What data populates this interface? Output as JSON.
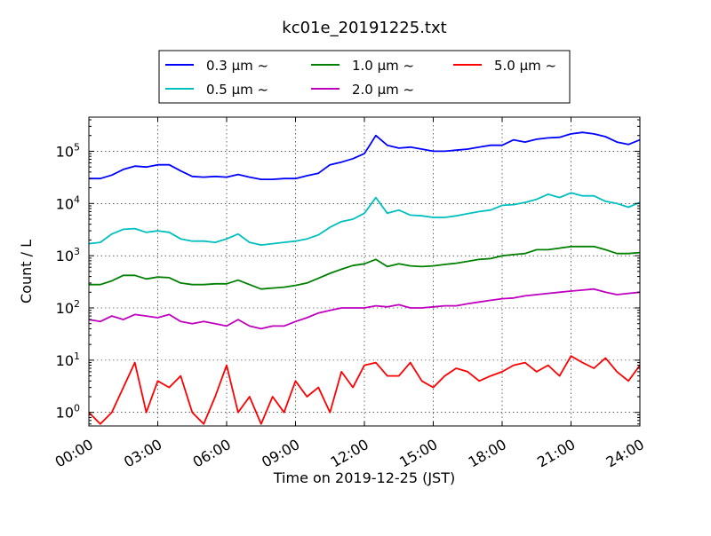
{
  "chart_data": {
    "type": "line",
    "title": "kc01e_20191225.txt",
    "xlabel": "Time on 2019-12-25 (JST)",
    "ylabel": "Count / L",
    "y_scale": "log",
    "ylim": [
      0.55,
      450000
    ],
    "xlim": [
      "00:00",
      "24:00"
    ],
    "grid": true,
    "legend_placement": "top-center",
    "x_ticks": [
      "00:00",
      "03:00",
      "06:00",
      "09:00",
      "12:00",
      "15:00",
      "18:00",
      "21:00",
      "24:00"
    ],
    "y_ticks": [
      {
        "value": 1,
        "label": "10",
        "exp": "0"
      },
      {
        "value": 10,
        "label": "10",
        "exp": "1"
      },
      {
        "value": 100,
        "label": "10",
        "exp": "2"
      },
      {
        "value": 1000,
        "label": "10",
        "exp": "3"
      },
      {
        "value": 10000,
        "label": "10",
        "exp": "4"
      },
      {
        "value": 100000,
        "label": "10",
        "exp": "5"
      }
    ],
    "series": [
      {
        "name": "0.3 µm ~",
        "color": "#0000ff",
        "x": [
          "00:00",
          "00:30",
          "01:00",
          "01:30",
          "02:00",
          "02:30",
          "03:00",
          "03:30",
          "04:00",
          "04:30",
          "05:00",
          "05:30",
          "06:00",
          "06:30",
          "07:00",
          "07:30",
          "08:00",
          "08:30",
          "09:00",
          "09:30",
          "10:00",
          "10:30",
          "11:00",
          "11:30",
          "12:00",
          "12:30",
          "13:00",
          "13:30",
          "14:00",
          "14:30",
          "15:00",
          "15:30",
          "16:00",
          "16:30",
          "17:00",
          "17:30",
          "18:00",
          "18:30",
          "19:00",
          "19:30",
          "20:00",
          "20:30",
          "21:00",
          "21:30",
          "22:00",
          "22:30",
          "23:00",
          "23:30",
          "24:00"
        ],
        "values": [
          30000,
          30000,
          35000,
          45000,
          52000,
          50000,
          55000,
          55000,
          42000,
          33000,
          32000,
          33000,
          32000,
          36000,
          32000,
          29000,
          29000,
          30000,
          30000,
          34000,
          38000,
          55000,
          62000,
          72000,
          90000,
          200000,
          130000,
          115000,
          120000,
          110000,
          100000,
          100000,
          105000,
          110000,
          120000,
          130000,
          130000,
          165000,
          150000,
          170000,
          180000,
          185000,
          215000,
          230000,
          215000,
          190000,
          150000,
          135000,
          165000
        ]
      },
      {
        "name": "0.5 µm ~",
        "color": "#00bfbf",
        "x": [
          "00:00",
          "00:30",
          "01:00",
          "01:30",
          "02:00",
          "02:30",
          "03:00",
          "03:30",
          "04:00",
          "04:30",
          "05:00",
          "05:30",
          "06:00",
          "06:30",
          "07:00",
          "07:30",
          "08:00",
          "08:30",
          "09:00",
          "09:30",
          "10:00",
          "10:30",
          "11:00",
          "11:30",
          "12:00",
          "12:30",
          "13:00",
          "13:30",
          "14:00",
          "14:30",
          "15:00",
          "15:30",
          "16:00",
          "16:30",
          "17:00",
          "17:30",
          "18:00",
          "18:30",
          "19:00",
          "19:30",
          "20:00",
          "20:30",
          "21:00",
          "21:30",
          "22:00",
          "22:30",
          "23:00",
          "23:30",
          "24:00"
        ],
        "values": [
          1700,
          1800,
          2600,
          3200,
          3300,
          2800,
          3000,
          2800,
          2100,
          1900,
          1900,
          1800,
          2100,
          2600,
          1800,
          1600,
          1700,
          1800,
          1900,
          2100,
          2500,
          3500,
          4500,
          5000,
          6500,
          13000,
          6500,
          7500,
          6000,
          5800,
          5400,
          5400,
          5800,
          6400,
          7000,
          7500,
          9200,
          9500,
          10500,
          12000,
          15000,
          13000,
          16000,
          14000,
          14000,
          11000,
          10000,
          8500,
          10500
        ]
      },
      {
        "name": "1.0 µm ~",
        "color": "#008000",
        "x": [
          "00:00",
          "00:30",
          "01:00",
          "01:30",
          "02:00",
          "02:30",
          "03:00",
          "03:30",
          "04:00",
          "04:30",
          "05:00",
          "05:30",
          "06:00",
          "06:30",
          "07:00",
          "07:30",
          "08:00",
          "08:30",
          "09:00",
          "09:30",
          "10:00",
          "10:30",
          "11:00",
          "11:30",
          "12:00",
          "12:30",
          "13:00",
          "13:30",
          "14:00",
          "14:30",
          "15:00",
          "15:30",
          "16:00",
          "16:30",
          "17:00",
          "17:30",
          "18:00",
          "18:30",
          "19:00",
          "19:30",
          "20:00",
          "20:30",
          "21:00",
          "21:30",
          "22:00",
          "22:30",
          "23:00",
          "23:30",
          "24:00"
        ],
        "values": [
          280,
          280,
          330,
          420,
          420,
          360,
          390,
          380,
          300,
          280,
          280,
          290,
          290,
          340,
          280,
          230,
          240,
          250,
          270,
          300,
          370,
          460,
          550,
          650,
          700,
          850,
          620,
          700,
          640,
          620,
          640,
          680,
          720,
          780,
          850,
          880,
          1000,
          1050,
          1100,
          1300,
          1300,
          1400,
          1500,
          1500,
          1500,
          1300,
          1100,
          1100,
          1150
        ]
      },
      {
        "name": "2.0 µm ~",
        "color": "#bf00bf",
        "x": [
          "00:00",
          "00:30",
          "01:00",
          "01:30",
          "02:00",
          "02:30",
          "03:00",
          "03:30",
          "04:00",
          "04:30",
          "05:00",
          "05:30",
          "06:00",
          "06:30",
          "07:00",
          "07:30",
          "08:00",
          "08:30",
          "09:00",
          "09:30",
          "10:00",
          "10:30",
          "11:00",
          "11:30",
          "12:00",
          "12:30",
          "13:00",
          "13:30",
          "14:00",
          "14:30",
          "15:00",
          "15:30",
          "16:00",
          "16:30",
          "17:00",
          "17:30",
          "18:00",
          "18:30",
          "19:00",
          "19:30",
          "20:00",
          "20:30",
          "21:00",
          "21:30",
          "22:00",
          "22:30",
          "23:00",
          "23:30",
          "24:00"
        ],
        "values": [
          60,
          55,
          70,
          60,
          75,
          70,
          65,
          75,
          55,
          50,
          55,
          50,
          45,
          60,
          45,
          40,
          45,
          45,
          55,
          65,
          80,
          90,
          100,
          100,
          100,
          110,
          105,
          115,
          100,
          100,
          105,
          110,
          110,
          120,
          130,
          140,
          150,
          155,
          170,
          180,
          190,
          200,
          210,
          220,
          230,
          200,
          180,
          190,
          200
        ]
      },
      {
        "name": "5.0 µm ~",
        "color": "#ff0000",
        "x": [
          "00:00",
          "00:30",
          "01:00",
          "01:30",
          "02:00",
          "02:30",
          "03:00",
          "03:30",
          "04:00",
          "04:30",
          "05:00",
          "05:30",
          "06:00",
          "06:30",
          "07:00",
          "07:30",
          "08:00",
          "08:30",
          "09:00",
          "09:30",
          "10:00",
          "10:30",
          "11:00",
          "11:30",
          "12:00",
          "12:30",
          "13:00",
          "13:30",
          "14:00",
          "14:30",
          "15:00",
          "15:30",
          "16:00",
          "16:30",
          "17:00",
          "17:30",
          "18:00",
          "18:30",
          "19:00",
          "19:30",
          "20:00",
          "20:30",
          "21:00",
          "21:30",
          "22:00",
          "22:30",
          "23:00",
          "23:30",
          "24:00"
        ],
        "values": [
          1,
          0.6,
          1,
          3,
          9,
          1,
          4,
          3,
          5,
          1,
          0.6,
          2,
          8,
          1,
          2,
          0.6,
          2,
          1,
          4,
          2,
          3,
          1,
          6,
          3,
          8,
          9,
          5,
          5,
          9,
          4,
          3,
          5,
          7,
          6,
          4,
          5,
          6,
          8,
          9,
          6,
          8,
          5,
          12,
          9,
          7,
          11,
          6,
          4,
          8
        ]
      }
    ],
    "legend": [
      {
        "label": "0.3 µm ~",
        "color": "#0000ff"
      },
      {
        "label": "0.5 µm ~",
        "color": "#00bfbf"
      },
      {
        "label": "1.0 µm ~",
        "color": "#008000"
      },
      {
        "label": "2.0 µm ~",
        "color": "#bf00bf"
      },
      {
        "label": "5.0 µm ~",
        "color": "#ff0000"
      }
    ]
  }
}
